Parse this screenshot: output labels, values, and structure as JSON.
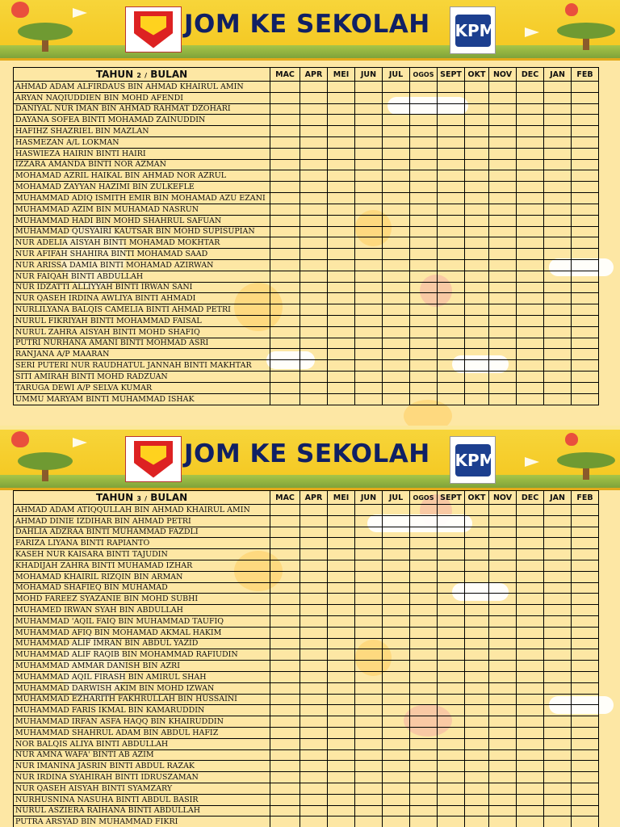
{
  "banner": {
    "title": "JOM KE SEKOLAH",
    "left_logo": "school-crest-icon",
    "right_logo": "kpm-25-logo-icon"
  },
  "months": [
    "MAC",
    "APR",
    "MEI",
    "JUN",
    "JUL",
    "OGOS",
    "SEPT",
    "OKT",
    "NOV",
    "DEC",
    "JAN",
    "FEB"
  ],
  "class1": {
    "year_label": "TAHUN",
    "year_num": "2",
    "header_sep": "/",
    "month_label": "BULAN",
    "students": [
      "AHMAD ADAM ALFIRDAUS BIN AHMAD KHAIRUL AMIN",
      "ARYAN NAQIUDDIEN BIN MOHD AFENDI",
      "DANIYAL NUR IMAN BIN AHMAD RAHMAT DZOHARI",
      "DAYANA SOFEA BINTI MOHAMAD ZAINUDDIN",
      "HAFIHZ SHAZRIEL BIN MAZLAN",
      "HASMEZAN A/L LOKMAN",
      "HASWIEZA HAIRIN BINTI HAIRI",
      "IZZARA AMANDA BINTI NOR AZMAN",
      "MOHAMAD AZRIL HAIKAL BIN AHMAD NOR AZRUL",
      "MOHAMAD ZAYYAN HAZIMI BIN ZULKEFLE",
      "MUHAMMAD ADIQ ISMITH EMIR BIN MOHAMAD AZU EZANI",
      "MUHAMMAD AZIM BIN MUHAMAD NASRUN",
      "MUHAMMAD HADI BIN MOHD SHAHRUL SAFUAN",
      "MUHAMMAD QUSYAIRI KAUTSAR BIN MOHD SUPISUPIAN",
      "NUR ADELIA AISYAH BINTI MOHAMAD MOKHTAR",
      "NUR AFIFAH SHAHIRA BINTI MOHAMAD SAAD",
      "NUR ARISSA DAMIA BINTI MOHAMAD AZIRWAN",
      "NUR FAIQAH BINTI ABDULLAH",
      "NUR IDZATTI ALLIYYAH BINTI IRWAN SANI",
      "NUR QASEH IRDINA AWLIYA BINTI AHMADI",
      "NURLILYANA BALQIS CAMELIA BINTI AHMAD PETRI",
      "NURUL FIKRIYAH BINTI MOHAMMAD FAISAL",
      "NURUL ZAHRA AISYAH BINTI MOHD SHAFIQ",
      "PUTRI NURHANA AMANI BINTI MOHMAD ASRI",
      "RANJANA A/P MAARAN",
      "SERI PUTERI NUR RAUDHATUL JANNAH BINTI MAKHTAR",
      "SITI AMIRAH BINTI MOHD RADZUAN",
      "TARUGA DEWI A/P SELVA KUMAR",
      "UMMU MARYAM BINTI MUHAMMAD ISHAK"
    ]
  },
  "class2": {
    "year_label": "TAHUN",
    "year_num": "3",
    "header_sep": "/",
    "month_label": "BULAN",
    "students": [
      "AHMAD ADAM ATIQQULLAH BIN AHMAD KHAIRUL AMIN",
      "AHMAD DINIE IZDIHAR BIN AHMAD PETRI",
      "DAHLIA ADZRAA BINTI MUHAMMAD FAZDLI",
      "FARIZA LIYANA BINTI RAPIANTO",
      "KASEH NUR KAISARA BINTI TAJUDIN",
      "KHADIJAH ZAHRA BINTI MUHAMAD IZHAR",
      "MOHAMAD KHAIRIL RIZQIN BIN ARMAN",
      "MOHAMAD SHAFIEQ BIN MUHAMAD",
      "MOHD FAREEZ SYAZANIE BIN MOHD SUBHI",
      "MUHAMED IRWAN SYAH BIN ABDULLAH",
      "MUHAMMAD 'AQIL FAIQ BIN MUHAMMAD TAUFIQ",
      "MUHAMMAD AFIQ BIN MOHAMAD AKMAL HAKIM",
      "MUHAMMAD ALIF IMRAN BIN ABDUL YAZID",
      "MUHAMMAD ALIF RAQIB BIN MOHAMMAD RAFIUDIN",
      "MUHAMMAD AMMAR DANISH BIN AZRI",
      "MUHAMMAD AQIL FIRASH BIN AMIRUL SHAH",
      "MUHAMMAD DARWISH AKIM BIN MOHD IZWAN",
      "MUHAMMAD EZHARITH FAKHRULLAH BIN HUSSAINI",
      "MUHAMMAD FARIS IKMAL BIN KAMARUDDIN",
      "MUHAMMAD IRFAN ASFA HAQQ BIN KHAIRUDDIN",
      "MUHAMMAD SHAHRUL ADAM BIN ABDUL HAFIZ",
      "NOR BALQIS ALIYA BINTI ABDULLAH",
      "NUR AMNA WAFA' BINTI AB AZIM",
      "NUR IMANINA JASRIN BINTI ABDUL RAZAK",
      "NUR IRDINA SYAHIRAH BINTI IDRUSZAMAN",
      "NUR QASEH AISYAH BINTI SYAMZARY",
      "NURHUSNINA NASUHA BINTI ABDUL BASIR",
      "NURUL ASZIERA RAIHANA BINTI ABDULLAH",
      "PUTRA ARSYAD BIN MUHAMMAD FIKRI"
    ]
  }
}
